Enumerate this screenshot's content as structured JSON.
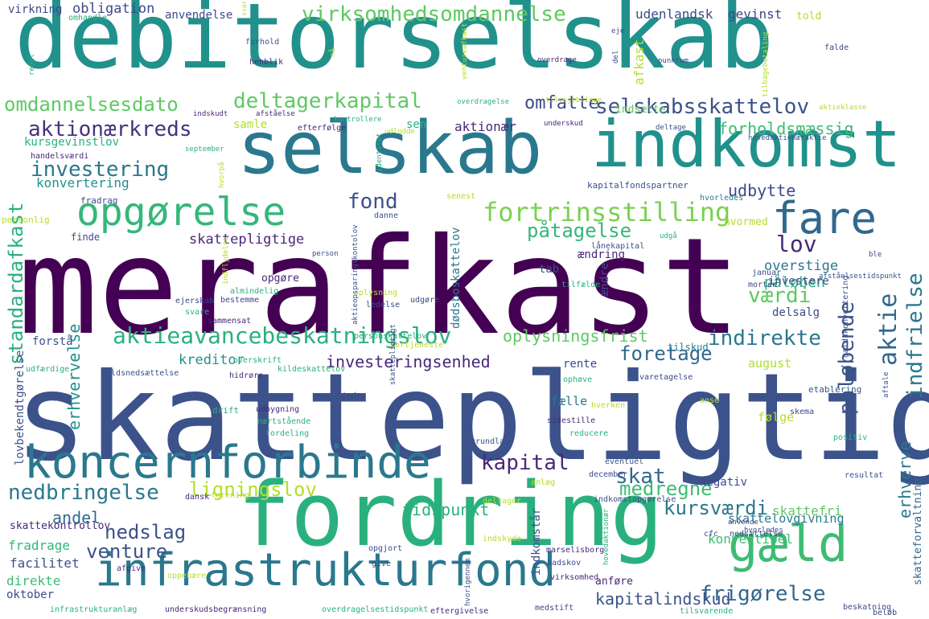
{
  "words": [
    {
      "text": "merafkast",
      "color": "#440154"
    },
    {
      "text": "skattepligtig",
      "color": "#3b528b"
    },
    {
      "text": "debitorselskab",
      "color": "#21918c"
    },
    {
      "text": "fordring",
      "color": "#2ab07f"
    },
    {
      "text": "selskab",
      "color": "#2a788e"
    },
    {
      "text": "indkomst",
      "color": "#21918c"
    },
    {
      "text": "koncernforbinde",
      "color": "#2a788e"
    },
    {
      "text": "infrastrukturfond",
      "color": "#2a788e"
    },
    {
      "text": "gæld",
      "color": "#3dbc74"
    },
    {
      "text": "opgørelse",
      "color": "#35b779"
    },
    {
      "text": "fare",
      "color": "#31688e"
    },
    {
      "text": "virksomhedsomdannelse",
      "color": "#5ec962"
    },
    {
      "text": "omdannelsesdato",
      "color": "#5ec962"
    },
    {
      "text": "deltagerkapital",
      "color": "#5ec962"
    },
    {
      "text": "selskabsskattelov",
      "color": "#3b528b"
    },
    {
      "text": "aktionærkreds",
      "color": "#46327e"
    },
    {
      "text": "investering",
      "color": "#2a788e"
    },
    {
      "text": "fortrinsstilling",
      "color": "#7ad151"
    },
    {
      "text": "aktieavancebeskatningslov",
      "color": "#2ab07f"
    },
    {
      "text": "standardafkast",
      "color": "#2ab07f"
    },
    {
      "text": "indfrielse",
      "color": "#2a788e"
    },
    {
      "text": "kapital",
      "color": "#482878"
    },
    {
      "text": "skat",
      "color": "#31688e"
    },
    {
      "text": "nedbringelse",
      "color": "#2a788e"
    },
    {
      "text": "medregne",
      "color": "#3dbc74"
    },
    {
      "text": "kursværdi",
      "color": "#2a788e"
    },
    {
      "text": "nedslag",
      "color": "#3b528b"
    },
    {
      "text": "frigørelse",
      "color": "#31688e"
    },
    {
      "text": "venture",
      "color": "#3b528b"
    },
    {
      "text": "ligningslov",
      "color": "#b5de2b"
    },
    {
      "text": "erhvervelse",
      "color": "#21918c"
    },
    {
      "text": "indirekte",
      "color": "#2a788e"
    },
    {
      "text": "foretage",
      "color": "#31688e"
    },
    {
      "text": "påtagelse",
      "color": "#35b779"
    },
    {
      "text": "påløben",
      "color": "#2ab07f"
    },
    {
      "text": "påløbende",
      "color": "#3b528b"
    },
    {
      "text": "aktie",
      "color": "#31688e"
    },
    {
      "text": "lov",
      "color": "#482878"
    },
    {
      "text": "værdi",
      "color": "#5ec962"
    },
    {
      "text": "fond",
      "color": "#3b528b"
    },
    {
      "text": "omfatte",
      "color": "#3e4989"
    },
    {
      "text": "udbytte",
      "color": "#3e4989"
    },
    {
      "text": "forholdsmæssig",
      "color": "#3dbc74"
    },
    {
      "text": "erhverve",
      "color": "#2a788e"
    },
    {
      "text": "kapitalindskud",
      "color": "#3b528b"
    },
    {
      "text": "andel",
      "color": "#31688e"
    },
    {
      "text": "investeringsenhed",
      "color": "#482878"
    },
    {
      "text": "oplysningsfrist",
      "color": "#5ec962"
    },
    {
      "text": "tidspunkt",
      "color": "#2ab07f"
    },
    {
      "text": "konvertering",
      "color": "#21918c"
    },
    {
      "text": "kursgevinstlov",
      "color": "#2ab07f"
    },
    {
      "text": "obligation",
      "color": "#3e4989"
    },
    {
      "text": "udenlandsk",
      "color": "#3e4989"
    },
    {
      "text": "gevinst",
      "color": "#3e4989"
    },
    {
      "text": "aktionær",
      "color": "#482878"
    },
    {
      "text": "overstige",
      "color": "#2a788e"
    },
    {
      "text": "investere",
      "color": "#3b528b"
    },
    {
      "text": "skattepligtige",
      "color": "#482878"
    },
    {
      "text": "dødsboskattelov",
      "color": "#2a788e"
    },
    {
      "text": "kreditor",
      "color": "#21918c"
    },
    {
      "text": "direkte",
      "color": "#3dbc74"
    },
    {
      "text": "facilitet",
      "color": "#3b528b"
    },
    {
      "text": "fradrage",
      "color": "#35b779"
    },
    {
      "text": "skattekontrollov",
      "color": "#482878"
    },
    {
      "text": "oktober",
      "color": "#3e4989"
    },
    {
      "text": "skattelovgivning",
      "color": "#2a788e"
    },
    {
      "text": "skattefri",
      "color": "#5ec962"
    },
    {
      "text": "konvertibel",
      "color": "#3dbc74"
    },
    {
      "text": "indkomstår",
      "color": "#3b528b"
    },
    {
      "text": "skatteforvaltning",
      "color": "#31688e"
    },
    {
      "text": "lovbekendtgørelse",
      "color": "#3b528b"
    },
    {
      "text": "følge",
      "color": "#b5de2b"
    },
    {
      "text": "fælle",
      "color": "#2a788e"
    },
    {
      "text": "rente",
      "color": "#3e4989"
    },
    {
      "text": "august",
      "color": "#b5de2b"
    },
    {
      "text": "negativ",
      "color": "#3e4989"
    },
    {
      "text": "delsalg",
      "color": "#3e4989"
    },
    {
      "text": "tab",
      "color": "#3b528b"
    },
    {
      "text": "ændre",
      "color": "#3e4989"
    },
    {
      "text": "ændring",
      "color": "#482878"
    },
    {
      "text": "forstå",
      "color": "#3b528b"
    },
    {
      "text": "opgøre",
      "color": "#482878"
    },
    {
      "text": "afkast",
      "color": "#b5de2b"
    },
    {
      "text": "told",
      "color": "#b5de2b"
    },
    {
      "text": "indsætte",
      "color": "#5ec962"
    },
    {
      "text": "sen",
      "color": "#2ab07f"
    },
    {
      "text": "samle",
      "color": "#b5de2b"
    },
    {
      "text": "anvendelse",
      "color": "#3e4989"
    },
    {
      "text": "virkning",
      "color": "#3e4989"
    },
    {
      "text": "anføre",
      "color": "#482878"
    },
    {
      "text": "tilskud",
      "color": "#2a788e"
    },
    {
      "text": "finde",
      "color": "#3e4989"
    },
    {
      "text": "hvormed",
      "color": "#b5de2b"
    },
    {
      "text": "kapitalfondspartner",
      "color": "#3b528b"
    },
    {
      "text": "hvorledes",
      "color": "#2a788e"
    },
    {
      "text": "fradrag",
      "color": "#3e4989"
    },
    {
      "text": "personlig",
      "color": "#b5de2b"
    },
    {
      "text": "danne",
      "color": "#3b528b"
    },
    {
      "text": "senest",
      "color": "#b5de2b"
    },
    {
      "text": "identitet",
      "color": "#2ab07f"
    },
    {
      "text": "hvorpå",
      "color": "#b5de2b"
    },
    {
      "text": "handelsværdi",
      "color": "#482878"
    },
    {
      "text": "september",
      "color": "#2ab07f"
    },
    {
      "text": "udlodde",
      "color": "#b5de2b"
    },
    {
      "text": "efterfølge",
      "color": "#482878"
    },
    {
      "text": "kontrollere",
      "color": "#2ab07f"
    },
    {
      "text": "underskud",
      "color": "#482878"
    },
    {
      "text": "deltage",
      "color": "#3b528b"
    },
    {
      "text": "hovedaktionæraktie",
      "color": "#3b528b"
    },
    {
      "text": "indskudt",
      "color": "#482878"
    },
    {
      "text": "afståelse",
      "color": "#482878"
    },
    {
      "text": "overdragelse",
      "color": "#2ab07f"
    },
    {
      "text": "tilvejebringe",
      "color": "#b5de2b"
    },
    {
      "text": "aktieklasse",
      "color": "#b5de2b"
    },
    {
      "text": "udgå",
      "color": "#2ab07f"
    },
    {
      "text": "lånekapital",
      "color": "#3b528b"
    },
    {
      "text": "januar",
      "color": "#3e4989"
    },
    {
      "text": "morten",
      "color": "#3e4989"
    },
    {
      "text": "afståelsestidspunkt",
      "color": "#3b528b"
    },
    {
      "text": "ble",
      "color": "#3e4989"
    },
    {
      "text": "tilfælde",
      "color": "#2ab07f"
    },
    {
      "text": "oplysning",
      "color": "#b5de2b"
    },
    {
      "text": "almindelig",
      "color": "#2ab07f"
    },
    {
      "text": "bestemme",
      "color": "#3e4989"
    },
    {
      "text": "ejerskab",
      "color": "#3e4989"
    },
    {
      "text": "svare",
      "color": "#2ab07f"
    },
    {
      "text": "sammensat",
      "color": "#482878"
    },
    {
      "text": "ledelse",
      "color": "#3e4989"
    },
    {
      "text": "udgøre",
      "color": "#3e4989"
    },
    {
      "text": "personskattelov",
      "color": "#2ab07f"
    },
    {
      "text": "fortjeneste",
      "color": "#b5de2b"
    },
    {
      "text": "gældskonvertering",
      "color": "#3b528b"
    },
    {
      "text": "udfærdige",
      "color": "#2ab07f"
    },
    {
      "text": "gældsnedsættelse",
      "color": "#3b528b"
    },
    {
      "text": "overskrift",
      "color": "#2ab07f"
    },
    {
      "text": "hidrøre",
      "color": "#482878"
    },
    {
      "text": "kildeskattelov",
      "color": "#2ab07f"
    },
    {
      "text": "ophøve",
      "color": "#2ab07f"
    },
    {
      "text": "varetagelse",
      "color": "#3e4989"
    },
    {
      "text": "etablering",
      "color": "#3b528b"
    },
    {
      "text": "aftale",
      "color": "#3b528b"
    },
    {
      "text": "inden",
      "color": "#3e4989"
    },
    {
      "text": "udbygning",
      "color": "#482878"
    },
    {
      "text": "nærtstående",
      "color": "#2ab07f"
    },
    {
      "text": "drift",
      "color": "#2ab07f"
    },
    {
      "text": "fordeling",
      "color": "#2ab07f"
    },
    {
      "text": "grundlag",
      "color": "#3b528b"
    },
    {
      "text": "sidestille",
      "color": "#482878"
    },
    {
      "text": "reducere",
      "color": "#2ab07f"
    },
    {
      "text": "hverken",
      "color": "#b5de2b"
    },
    {
      "text": "anse",
      "color": "#b5de2b"
    },
    {
      "text": "skema",
      "color": "#3e4989"
    },
    {
      "text": "positiv",
      "color": "#2ab07f"
    },
    {
      "text": "eventuel",
      "color": "#3b528b"
    },
    {
      "text": "december",
      "color": "#3e4989"
    },
    {
      "text": "resultat",
      "color": "#3b528b"
    },
    {
      "text": "dansk",
      "color": "#482878"
    },
    {
      "text": "forening",
      "color": "#b5de2b"
    },
    {
      "text": "anlæg",
      "color": "#b5de2b"
    },
    {
      "text": "deltager",
      "color": "#b5de2b"
    },
    {
      "text": "indkomstopgørelse",
      "color": "#3b528b"
    },
    {
      "text": "nedsættelse",
      "color": "#3e4989"
    },
    {
      "text": "cfc",
      "color": "#3e4989"
    },
    {
      "text": "indskyde",
      "color": "#b5de2b"
    },
    {
      "text": "opgjort",
      "color": "#3e4989"
    },
    {
      "text": "marselisborg",
      "color": "#482878"
    },
    {
      "text": "badskov",
      "color": "#3e4989"
    },
    {
      "text": "afgive",
      "color": "#482878"
    },
    {
      "text": "oppebære",
      "color": "#b5de2b"
    },
    {
      "text": "give",
      "color": "#3e4989"
    },
    {
      "text": "virksomhed",
      "color": "#482878"
    },
    {
      "text": "infrastrukturanlæg",
      "color": "#2ab07f"
    },
    {
      "text": "underskudsbegrænsning",
      "color": "#482878"
    },
    {
      "text": "overdragelsestidspunkt",
      "color": "#2ab07f"
    },
    {
      "text": "eftergivelse",
      "color": "#482878"
    },
    {
      "text": "medstift",
      "color": "#3e4989"
    },
    {
      "text": "tilsvarende",
      "color": "#2ab07f"
    },
    {
      "text": "beskatning",
      "color": "#3e4989"
    },
    {
      "text": "beløb",
      "color": "#3e4989"
    },
    {
      "text": "omhandle",
      "color": "#2ab07f"
    },
    {
      "text": "svar",
      "color": "#b5de2b"
    },
    {
      "text": "forhold",
      "color": "#3b528b"
    },
    {
      "text": "henblik",
      "color": "#482878"
    },
    {
      "text": "eje",
      "color": "#3e4989"
    },
    {
      "text": "del",
      "color": "#3e4989"
    },
    {
      "text": "overdrage",
      "color": "#482878"
    },
    {
      "text": "punktum",
      "color": "#3e4989"
    },
    {
      "text": "falde",
      "color": "#3e4989"
    },
    {
      "text": "regel",
      "color": "#2ab07f"
    },
    {
      "text": "nå",
      "color": "#b5de2b"
    },
    {
      "text": "ventureafkast",
      "color": "#b5de2b"
    },
    {
      "text": "tilbagebetaling",
      "color": "#b5de2b"
    },
    {
      "text": "skattepligtigt",
      "color": "#3b528b"
    },
    {
      "text": "indflydelse",
      "color": "#b5de2b"
    },
    {
      "text": "aktieopsparingskontolov",
      "color": "#3b528b"
    },
    {
      "text": "person",
      "color": "#3e4989"
    },
    {
      "text": "hovedaktionær",
      "color": "#2ab07f"
    },
    {
      "text": "hvorigennem",
      "color": "#3b528b"
    },
    {
      "text": "anvende",
      "color": "#3e4989"
    },
    {
      "text": "hvorledes",
      "color": "#3e4989"
    }
  ]
}
